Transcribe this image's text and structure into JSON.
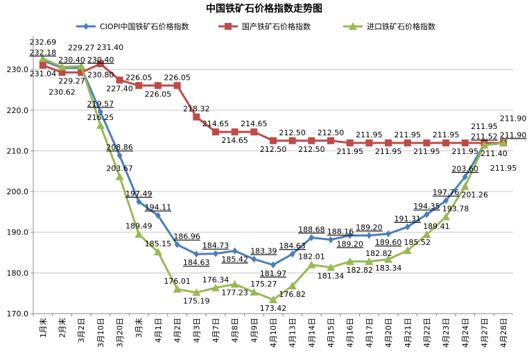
{
  "chart_data": {
    "type": "line",
    "title": "中国铁矿石价格指数走势图",
    "legend_position": "top",
    "grid": "horizontal",
    "ylim": [
      170,
      236.5
    ],
    "yticks": [
      "170.0",
      "180.0",
      "190.0",
      "200.0",
      "210.0",
      "220.0",
      "230.0"
    ],
    "categories": [
      "1月末",
      "2月末",
      "3月2日",
      "3月10日",
      "3月20日",
      "3月末",
      "4月1日",
      "4月2日",
      "4月3日",
      "4月7日",
      "4月8日",
      "4月9日",
      "4月10日",
      "4月13日",
      "4月14日",
      "4月15日",
      "4月16日",
      "4月17日",
      "4月20日",
      "4月21日",
      "4月22日",
      "4月23日",
      "4月24日",
      "4月27日",
      "4月28日"
    ],
    "series": [
      {
        "name": "CIOPI中国铁矿石价格指数",
        "color": "#4a7ebb",
        "marker": "diamond",
        "underline": true,
        "values": [
          232.18,
          230.4,
          230.4,
          219.57,
          208.86,
          197.49,
          194.11,
          186.96,
          184.63,
          184.73,
          185.42,
          183.39,
          181.97,
          184.63,
          188.68,
          188.16,
          189.2,
          189.2,
          189.6,
          191.31,
          194.35,
          197.76,
          203.6,
          211.52,
          211.9
        ]
      },
      {
        "name": "国产铁矿石价格指数",
        "color": "#be4b48",
        "marker": "square",
        "underline": false,
        "values": [
          231.04,
          229.27,
          229.27,
          231.4,
          227.4,
          226.05,
          226.05,
          226.05,
          218.32,
          214.65,
          214.65,
          214.65,
          212.5,
          212.5,
          212.5,
          212.5,
          211.95,
          211.95,
          211.95,
          211.95,
          211.95,
          211.95,
          211.95,
          211.95,
          211.95
        ]
      },
      {
        "name": "进口铁矿石价格指数",
        "color": "#98b954",
        "marker": "triangle",
        "underline": false,
        "values": [
          232.69,
          230.62,
          230.8,
          216.25,
          203.67,
          189.49,
          185.15,
          176.01,
          175.19,
          176.34,
          177.23,
          175.27,
          173.42,
          176.82,
          182.01,
          181.34,
          182.82,
          182.82,
          183.34,
          185.52,
          189.41,
          193.78,
          201.26,
          211.4,
          211.9
        ]
      }
    ]
  }
}
